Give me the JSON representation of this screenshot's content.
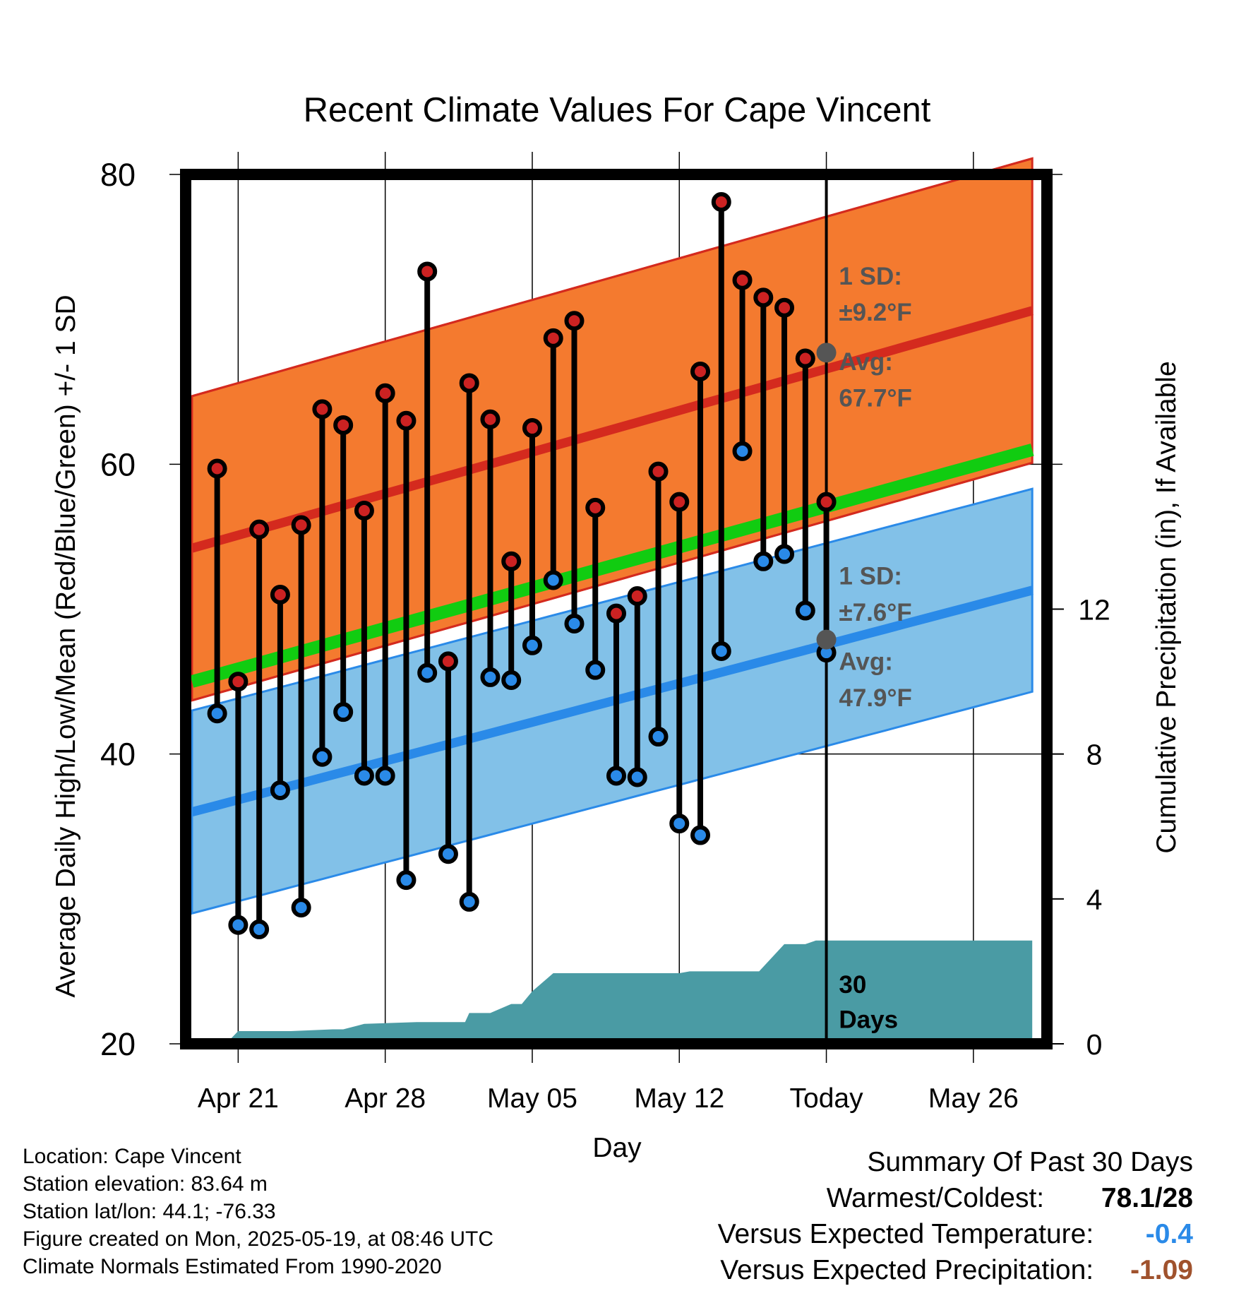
{
  "chart_data": {
    "type": "line",
    "title": "Recent Climate Values For Cape Vincent",
    "xlabel": "Day",
    "ylabel": "Average Daily High/Low/Mean (Red/Blue/Green) +/- 1 SD",
    "y2label": "Cumulative Precipitation (in), If Available",
    "ylim": [
      20,
      80
    ],
    "y2lim": [
      0,
      24
    ],
    "xlim": [
      -1.5,
      39.5
    ],
    "x_ticks": [
      {
        "x": 1,
        "label": "Apr 21"
      },
      {
        "x": 8,
        "label": "Apr 28"
      },
      {
        "x": 15,
        "label": "May 05"
      },
      {
        "x": 22,
        "label": "May 12"
      },
      {
        "x": 29,
        "label": "Today"
      },
      {
        "x": 36,
        "label": "May 26"
      }
    ],
    "y_ticks": [
      20,
      40,
      60,
      80
    ],
    "y2_ticks": [
      0,
      4,
      8,
      12
    ],
    "today_x": 29,
    "normals": {
      "x_start": -1.2,
      "x_end": 38.8,
      "high_mean": [
        54.2,
        70.6
      ],
      "high_sd": 10.5,
      "low_mean": [
        36.0,
        51.3
      ],
      "low_sd": 7.0,
      "mean_mean": [
        45.0,
        61.0
      ]
    },
    "series": [
      {
        "name": "High",
        "color": "#cc2222",
        "values": [
          59.7,
          45.0,
          55.5,
          51.0,
          55.8,
          63.8,
          62.7,
          56.8,
          64.9,
          63.0,
          73.3,
          46.4,
          65.6,
          63.1,
          53.3,
          62.5,
          68.7,
          69.9,
          57.0,
          49.7,
          50.9,
          59.5,
          57.4,
          66.4,
          78.1,
          72.7,
          71.5,
          70.8,
          67.3,
          57.4
        ]
      },
      {
        "name": "Low",
        "color": "#2a8ae8",
        "values": [
          42.8,
          28.2,
          27.9,
          37.5,
          29.4,
          39.8,
          42.9,
          38.5,
          38.5,
          31.3,
          45.6,
          33.1,
          29.8,
          45.3,
          45.1,
          47.5,
          52.0,
          49.0,
          45.8,
          38.5,
          38.4,
          41.2,
          35.2,
          34.4,
          47.1,
          60.9,
          53.3,
          53.8,
          49.9,
          47.0
        ]
      }
    ],
    "precipitation": {
      "x": [
        -1.2,
        -0.6,
        0.5,
        1.0,
        3.5,
        5.5,
        6.0,
        7.0,
        9.5,
        10.0,
        11.8,
        12.0,
        13.0,
        14.0,
        14.5,
        15.0,
        16.0,
        22.0,
        22.5,
        25.8,
        27.0,
        28.0,
        28.5,
        38.8
      ],
      "values": [
        0.0,
        0.05,
        0.05,
        0.35,
        0.35,
        0.4,
        0.4,
        0.55,
        0.6,
        0.6,
        0.6,
        0.85,
        0.85,
        1.1,
        1.1,
        1.45,
        1.95,
        1.95,
        2.0,
        2.0,
        2.75,
        2.75,
        2.85,
        2.85
      ]
    },
    "annotations": [
      {
        "text": "1 SD:",
        "x": 29.6,
        "y": 72.4
      },
      {
        "text": "±9.2°F",
        "x": 29.6,
        "y": 69.9
      },
      {
        "text": "Avg:",
        "x": 29.6,
        "y": 66.5
      },
      {
        "text": "67.7°F",
        "x": 29.6,
        "y": 64.0
      },
      {
        "text": "1 SD:",
        "x": 29.6,
        "y": 51.7
      },
      {
        "text": "±7.6°F",
        "x": 29.6,
        "y": 49.2
      },
      {
        "text": "Avg:",
        "x": 29.6,
        "y": 45.8
      },
      {
        "text": "47.9°F",
        "x": 29.6,
        "y": 43.3
      },
      {
        "text": "30",
        "x": 29.6,
        "y": 23.5
      },
      {
        "text": "Days",
        "x": 29.6,
        "y": 21.1
      }
    ],
    "avg_markers": [
      {
        "x": 29,
        "y": 67.7
      },
      {
        "x": 29,
        "y": 47.9
      }
    ]
  },
  "info": {
    "location": "Location: Cape Vincent",
    "elevation": "Station elevation: 83.64 m",
    "latlon": "Station lat/lon: 44.1; -76.33",
    "created": "Figure created on Mon, 2025-05-19, at 08:46 UTC",
    "normals": "Climate Normals Estimated From 1990-2020"
  },
  "summary": {
    "heading": "Summary Of Past 30 Days",
    "warm_cold_label": "Warmest/Coldest:",
    "warm_cold_value": "78.1/28",
    "temp_label": "Versus Expected Temperature:",
    "temp_value": "-0.4",
    "temp_color": "#2a8ae8",
    "precip_label": "Versus Expected Precipitation:",
    "precip_value": "-1.09",
    "precip_color": "#a0522d"
  }
}
